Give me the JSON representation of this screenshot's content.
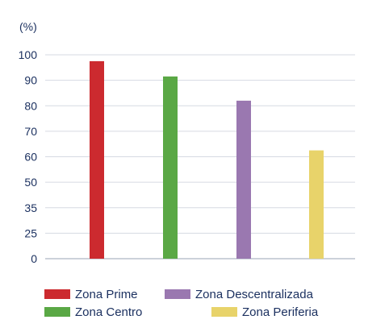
{
  "chart_data": {
    "type": "bar",
    "unit_label": "(%)",
    "y_ticks": [
      "0",
      "25",
      "35",
      "50",
      "60",
      "70",
      "80",
      "90",
      "100"
    ],
    "categories": [
      "Zona Prime",
      "Zona Centro",
      "Zona Descentralizada",
      "Zona Periferia"
    ],
    "values": [
      97.5,
      91.5,
      82,
      62.5
    ],
    "colors": [
      "#cc2a2f",
      "#5aa845",
      "#9a78b0",
      "#e8d36a"
    ],
    "legend_position": "bottom",
    "grid": true
  },
  "legend": {
    "items": [
      {
        "label": "Zona Prime",
        "color": "#cc2a2f"
      },
      {
        "label": "Zona Descentralizada",
        "color": "#9a78b0"
      },
      {
        "label": "Zona Centro",
        "color": "#5aa845"
      },
      {
        "label": "Zona Periferia",
        "color": "#e8d36a"
      }
    ]
  }
}
